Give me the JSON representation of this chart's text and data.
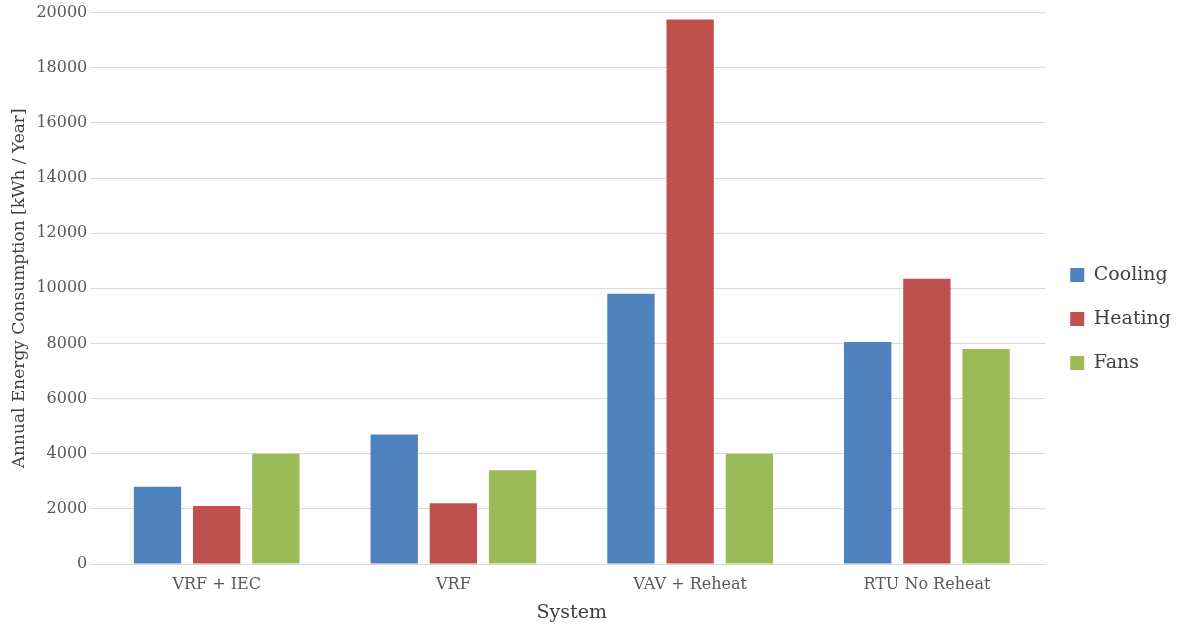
{
  "chart_data": {
    "type": "bar",
    "xlabel": "System",
    "ylabel": "Annual Energy Consumption [kWh / Year]",
    "categories": [
      "VRF + IEC",
      "VRF",
      "VAV + Reheat",
      "RTU No Reheat"
    ],
    "series": [
      {
        "name": "Cooling",
        "color": "#4f81bd",
        "values": [
          2800,
          4700,
          9800,
          8050
        ]
      },
      {
        "name": "Heating",
        "color": "#c0504d",
        "values": [
          2100,
          2200,
          19750,
          10350
        ]
      },
      {
        "name": "Fans",
        "color": "#9bbb59",
        "values": [
          4000,
          3400,
          4000,
          7800
        ]
      }
    ],
    "ylim": [
      0,
      20000
    ],
    "yticks": [
      0,
      2000,
      4000,
      6000,
      8000,
      10000,
      12000,
      14000,
      16000,
      18000,
      20000
    ],
    "grid": "y",
    "legend": "right"
  }
}
